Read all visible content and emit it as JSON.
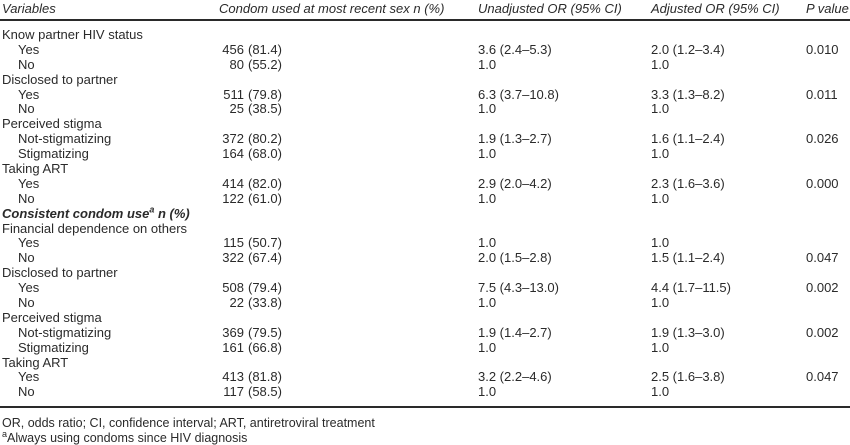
{
  "table": {
    "columns": [
      {
        "label": "Variables"
      },
      {
        "label": "Condom used at most recent sex n (%)"
      },
      {
        "label": "Unadjusted OR (95% CI)"
      },
      {
        "label": "Adjusted OR (95% CI)"
      },
      {
        "label": "P value"
      }
    ],
    "rows": [
      {
        "type": "group",
        "label": "Know partner HIV status"
      },
      {
        "type": "item",
        "label": "Yes",
        "n_num": "456",
        "n_pct": "(81.4)",
        "unadj": "3.6 (2.4–5.3)",
        "adj": "2.0 (1.2–3.4)",
        "p": "0.010"
      },
      {
        "type": "item",
        "label": "No",
        "n_num": "80",
        "n_pct": "(55.2)",
        "unadj": "1.0",
        "adj": "1.0",
        "p": ""
      },
      {
        "type": "group",
        "label": "Disclosed to partner"
      },
      {
        "type": "item",
        "label": "Yes",
        "n_num": "511",
        "n_pct": "(79.8)",
        "unadj": "6.3 (3.7–10.8)",
        "adj": "3.3 (1.3–8.2)",
        "p": "0.011"
      },
      {
        "type": "item",
        "label": "No",
        "n_num": "25",
        "n_pct": "(38.5)",
        "unadj": "1.0",
        "adj": "1.0",
        "p": ""
      },
      {
        "type": "group",
        "label": "Perceived stigma"
      },
      {
        "type": "item",
        "label": "Not-stigmatizing",
        "n_num": "372",
        "n_pct": "(80.2)",
        "unadj": "1.9 (1.3–2.7)",
        "adj": "1.6 (1.1–2.4)",
        "p": "0.026"
      },
      {
        "type": "item",
        "label": "Stigmatizing",
        "n_num": "164",
        "n_pct": "(68.0)",
        "unadj": "1.0",
        "adj": "1.0",
        "p": ""
      },
      {
        "type": "group",
        "label": "Taking ART"
      },
      {
        "type": "item",
        "label": "Yes",
        "n_num": "414",
        "n_pct": "(82.0)",
        "unadj": "2.9 (2.0–4.2)",
        "adj": "2.3 (1.6–3.6)",
        "p": "0.000"
      },
      {
        "type": "item",
        "label": "No",
        "n_num": "122",
        "n_pct": "(61.0)",
        "unadj": "1.0",
        "adj": "1.0",
        "p": ""
      },
      {
        "type": "section",
        "label": "Consistent condom use",
        "sup": "a",
        "suffix": " n (%)"
      },
      {
        "type": "group",
        "label": "Financial dependence on others"
      },
      {
        "type": "item",
        "label": "Yes",
        "n_num": "115",
        "n_pct": "(50.7)",
        "unadj": "1.0",
        "adj": "1.0",
        "p": ""
      },
      {
        "type": "item",
        "label": "No",
        "n_num": "322",
        "n_pct": "(67.4)",
        "unadj": "2.0 (1.5–2.8)",
        "adj": "1.5 (1.1–2.4)",
        "p": "0.047"
      },
      {
        "type": "group",
        "label": "Disclosed to partner"
      },
      {
        "type": "item",
        "label": "Yes",
        "n_num": "508",
        "n_pct": "(79.4)",
        "unadj": "7.5 (4.3–13.0)",
        "adj": "4.4 (1.7–11.5)",
        "p": "0.002"
      },
      {
        "type": "item",
        "label": "No",
        "n_num": "22",
        "n_pct": "(33.8)",
        "unadj": "1.0",
        "adj": "1.0",
        "p": ""
      },
      {
        "type": "group",
        "label": "Perceived stigma"
      },
      {
        "type": "item",
        "label": "Not-stigmatizing",
        "n_num": "369",
        "n_pct": "(79.5)",
        "unadj": "1.9 (1.4–2.7)",
        "adj": "1.9 (1.3–3.0)",
        "p": "0.002"
      },
      {
        "type": "item",
        "label": "Stigmatizing",
        "n_num": "161",
        "n_pct": "(66.8)",
        "unadj": "1.0",
        "adj": "1.0",
        "p": ""
      },
      {
        "type": "group",
        "label": "Taking ART"
      },
      {
        "type": "item",
        "label": "Yes",
        "n_num": "413",
        "n_pct": "(81.8)",
        "unadj": "3.2 (2.2–4.6)",
        "adj": "2.5 (1.6–3.8)",
        "p": "0.047"
      },
      {
        "type": "item",
        "label": "No",
        "n_num": "117",
        "n_pct": "(58.5)",
        "unadj": "1.0",
        "adj": "1.0",
        "p": ""
      }
    ]
  },
  "footnotes": {
    "abbreviations": "OR, odds ratio; CI, confidence interval; ART, antiretroviral treatment",
    "note_sup": "a",
    "note_text": "Always using condoms since HIV diagnosis"
  },
  "colors": {
    "background": "#ffffff",
    "text": "#2a2a2a",
    "rule": "#2a2a2a"
  }
}
